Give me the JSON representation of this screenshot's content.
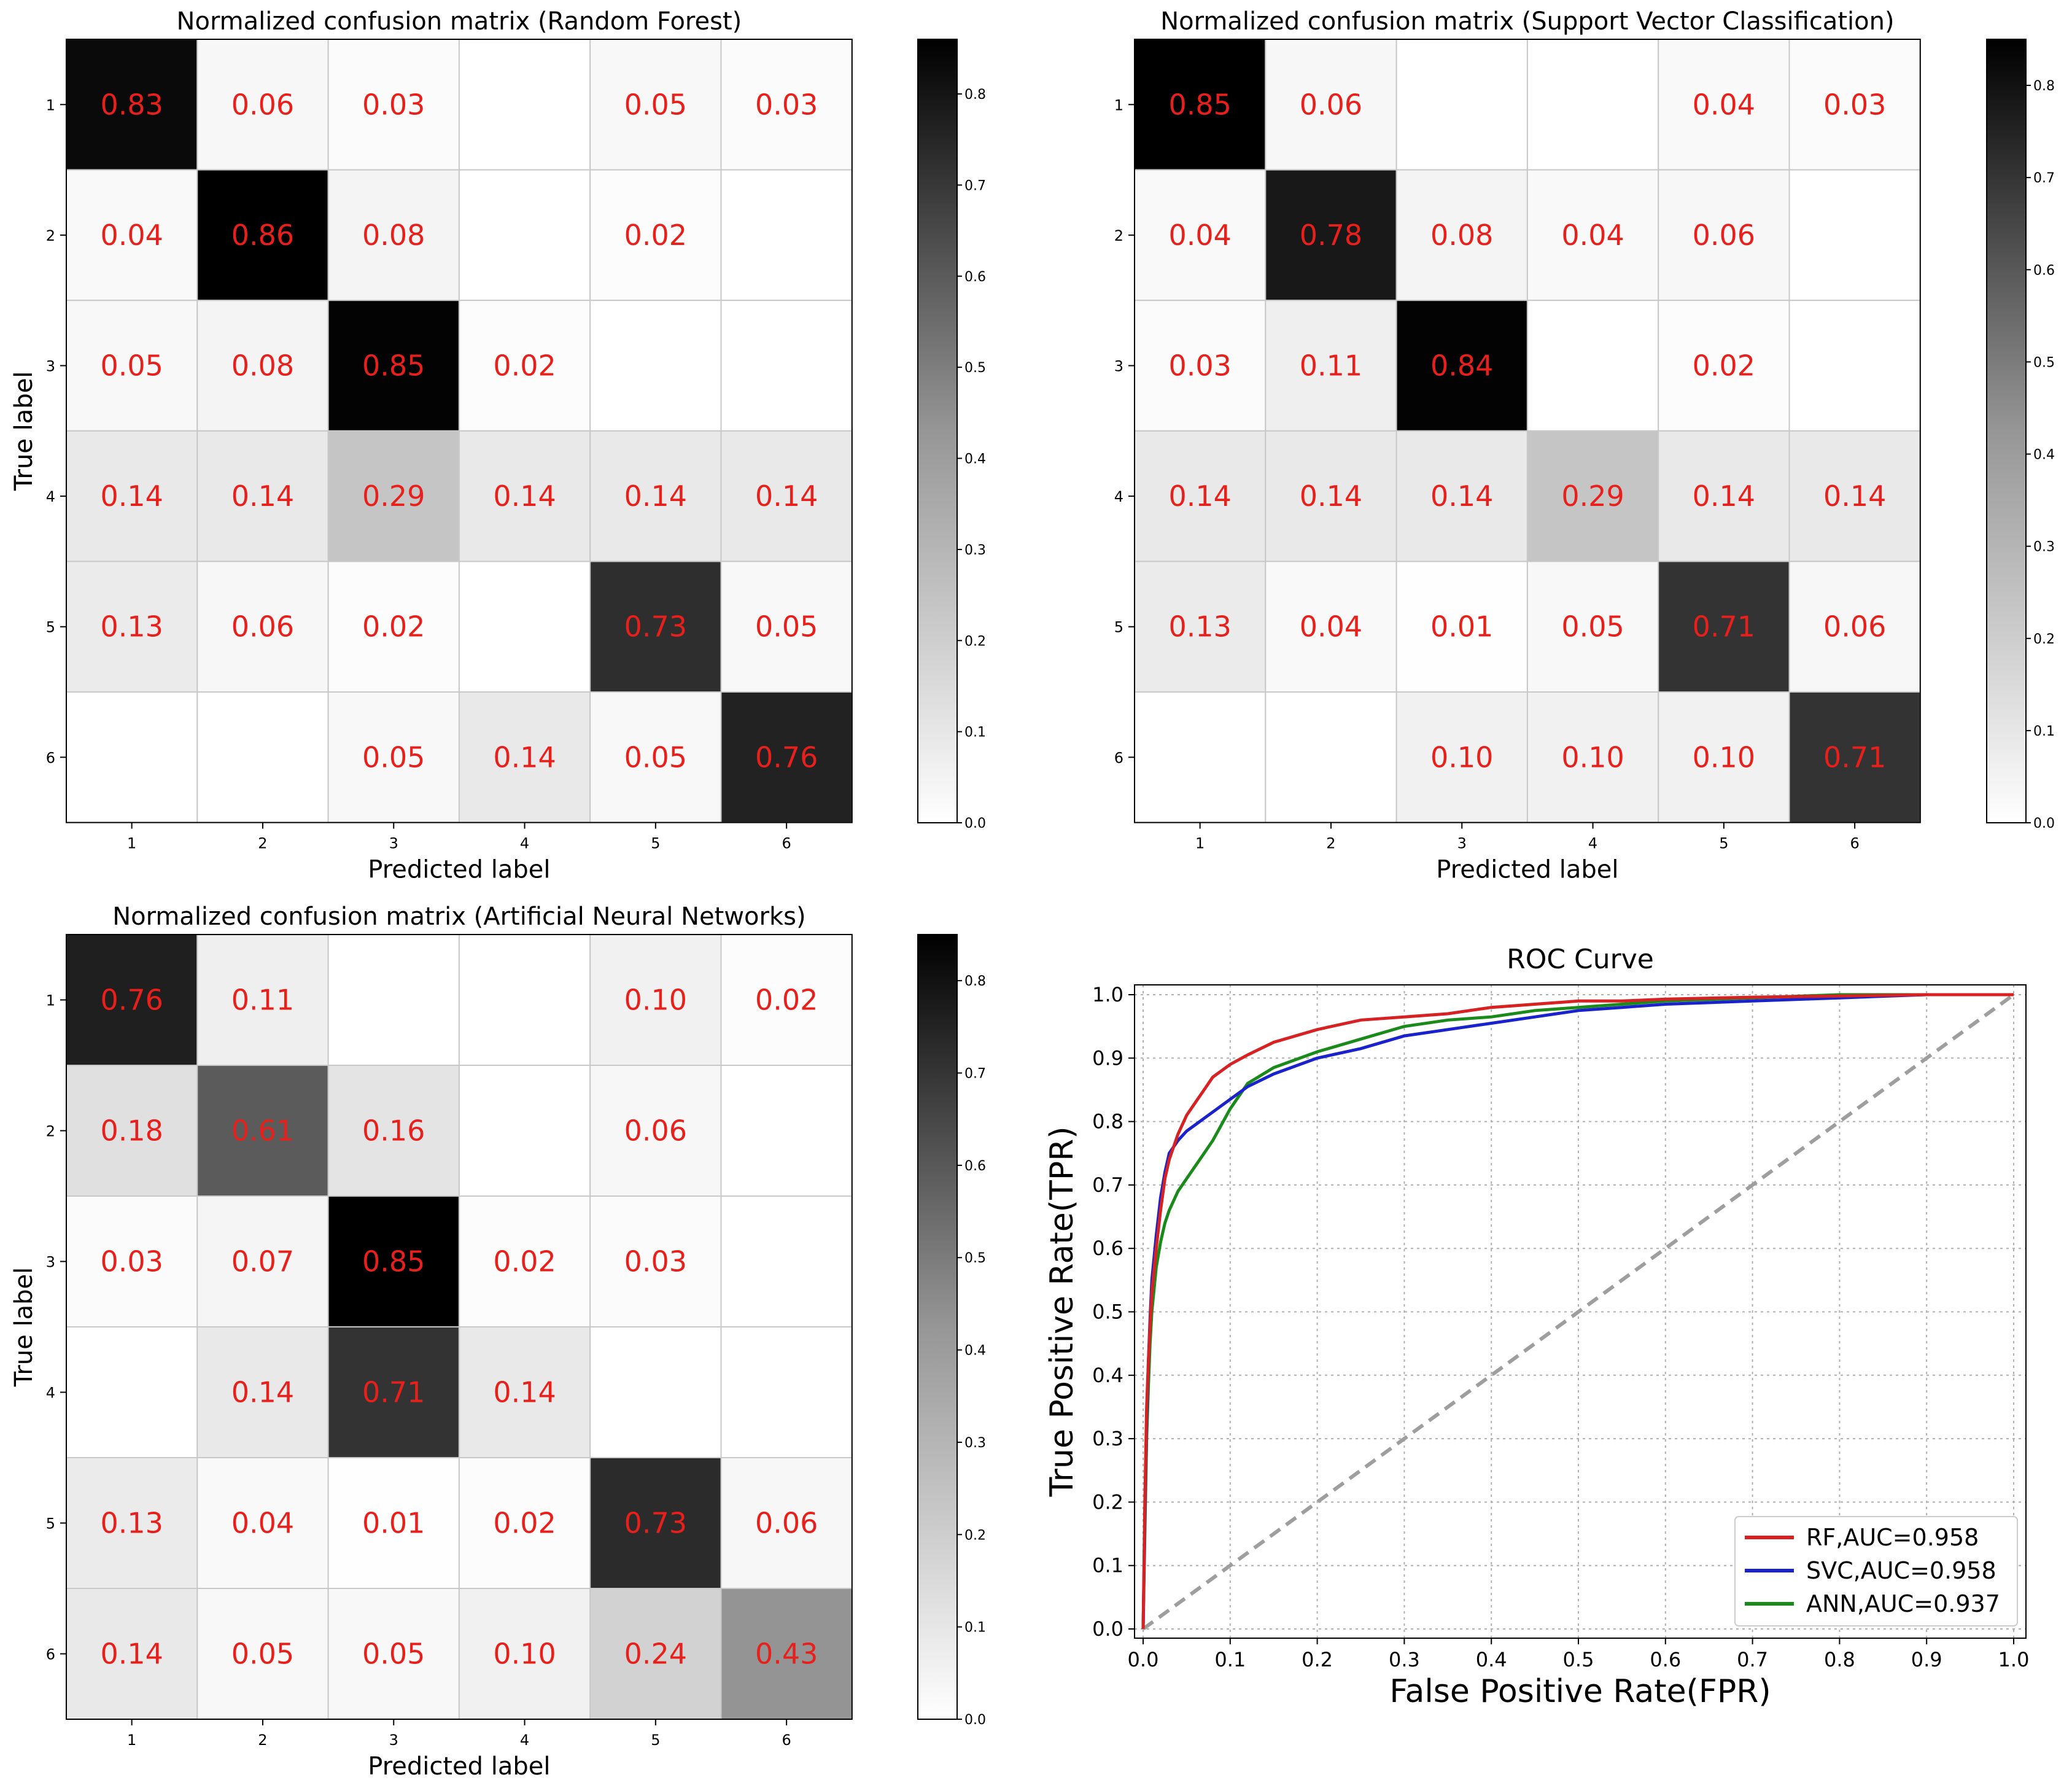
{
  "figure": {
    "colorbar_ticks": [
      "0.0",
      "0.1",
      "0.2",
      "0.3",
      "0.4",
      "0.5",
      "0.6",
      "0.7",
      "0.8"
    ]
  },
  "chart_data": [
    {
      "type": "heatmap",
      "title": "Normalized confusion matrix (Random Forest)",
      "xlabel": "Predicted label",
      "ylabel": "True label",
      "x_categories": [
        "1",
        "2",
        "3",
        "4",
        "5",
        "6"
      ],
      "y_categories": [
        "1",
        "2",
        "3",
        "4",
        "5",
        "6"
      ],
      "values": [
        [
          0.83,
          0.06,
          0.03,
          0.0,
          0.05,
          0.03
        ],
        [
          0.04,
          0.86,
          0.08,
          0.0,
          0.02,
          0.0
        ],
        [
          0.05,
          0.08,
          0.85,
          0.02,
          0.0,
          0.0
        ],
        [
          0.14,
          0.14,
          0.29,
          0.14,
          0.14,
          0.14
        ],
        [
          0.13,
          0.06,
          0.02,
          0.0,
          0.73,
          0.05
        ],
        [
          0.0,
          0.0,
          0.05,
          0.14,
          0.05,
          0.76
        ]
      ],
      "labels": [
        [
          "0.83",
          "0.06",
          "0.03",
          "",
          "0.05",
          "0.03"
        ],
        [
          "0.04",
          "0.86",
          "0.08",
          "",
          "0.02",
          ""
        ],
        [
          "0.05",
          "0.08",
          "0.85",
          "0.02",
          "",
          ""
        ],
        [
          "0.14",
          "0.14",
          "0.29",
          "0.14",
          "0.14",
          "0.14"
        ],
        [
          "0.13",
          "0.06",
          "0.02",
          "",
          "0.73",
          "0.05"
        ],
        [
          "",
          "",
          "0.05",
          "0.14",
          "0.05",
          "0.76"
        ]
      ],
      "colormap": "Greys",
      "vmin": 0.0,
      "vmax": 0.86,
      "colorbar_ticks": [
        0.0,
        0.1,
        0.2,
        0.3,
        0.4,
        0.5,
        0.6,
        0.7,
        0.8
      ],
      "label_color": "#e8201c",
      "grid": true
    },
    {
      "type": "heatmap",
      "title": "Normalized confusion matrix (Support Vector Classification)",
      "xlabel": "Predicted label",
      "ylabel": "True label",
      "x_categories": [
        "1",
        "2",
        "3",
        "4",
        "5",
        "6"
      ],
      "y_categories": [
        "1",
        "2",
        "3",
        "4",
        "5",
        "6"
      ],
      "values": [
        [
          0.85,
          0.06,
          0.0,
          0.0,
          0.04,
          0.03
        ],
        [
          0.04,
          0.78,
          0.08,
          0.04,
          0.06,
          0.0
        ],
        [
          0.03,
          0.11,
          0.84,
          0.0,
          0.02,
          0.0
        ],
        [
          0.14,
          0.14,
          0.14,
          0.29,
          0.14,
          0.14
        ],
        [
          0.13,
          0.04,
          0.01,
          0.05,
          0.71,
          0.06
        ],
        [
          0.0,
          0.0,
          0.1,
          0.1,
          0.1,
          0.71
        ]
      ],
      "labels": [
        [
          "0.85",
          "0.06",
          "",
          "",
          "0.04",
          "0.03"
        ],
        [
          "0.04",
          "0.78",
          "0.08",
          "0.04",
          "0.06",
          ""
        ],
        [
          "0.03",
          "0.11",
          "0.84",
          "",
          "0.02",
          ""
        ],
        [
          "0.14",
          "0.14",
          "0.14",
          "0.29",
          "0.14",
          "0.14"
        ],
        [
          "0.13",
          "0.04",
          "0.01",
          "0.05",
          "0.71",
          "0.06"
        ],
        [
          "",
          "",
          "0.10",
          "0.10",
          "0.10",
          "0.71"
        ]
      ],
      "colormap": "Greys",
      "vmin": 0.0,
      "vmax": 0.85,
      "colorbar_ticks": [
        0.0,
        0.1,
        0.2,
        0.3,
        0.4,
        0.5,
        0.6,
        0.7,
        0.8
      ],
      "label_color": "#e8201c",
      "grid": true
    },
    {
      "type": "heatmap",
      "title": "Normalized confusion matrix (Artificial Neural Networks)",
      "xlabel": "Predicted label",
      "ylabel": "True label",
      "x_categories": [
        "1",
        "2",
        "3",
        "4",
        "5",
        "6"
      ],
      "y_categories": [
        "1",
        "2",
        "3",
        "4",
        "5",
        "6"
      ],
      "values": [
        [
          0.76,
          0.11,
          0.0,
          0.0,
          0.1,
          0.02
        ],
        [
          0.18,
          0.61,
          0.16,
          0.0,
          0.06,
          0.0
        ],
        [
          0.03,
          0.07,
          0.85,
          0.02,
          0.03,
          0.0
        ],
        [
          0.0,
          0.14,
          0.71,
          0.14,
          0.0,
          0.0
        ],
        [
          0.13,
          0.04,
          0.01,
          0.02,
          0.73,
          0.06
        ],
        [
          0.14,
          0.05,
          0.05,
          0.1,
          0.24,
          0.43
        ]
      ],
      "labels": [
        [
          "0.76",
          "0.11",
          "",
          "",
          "0.10",
          "0.02"
        ],
        [
          "0.18",
          "0.61",
          "0.16",
          "",
          "0.06",
          ""
        ],
        [
          "0.03",
          "0.07",
          "0.85",
          "0.02",
          "0.03",
          ""
        ],
        [
          "",
          "0.14",
          "0.71",
          "0.14",
          "",
          ""
        ],
        [
          "0.13",
          "0.04",
          "0.01",
          "0.02",
          "0.73",
          "0.06"
        ],
        [
          "0.14",
          "0.05",
          "0.05",
          "0.10",
          "0.24",
          "0.43"
        ]
      ],
      "colormap": "Greys",
      "vmin": 0.0,
      "vmax": 0.85,
      "colorbar_ticks": [
        0.0,
        0.1,
        0.2,
        0.3,
        0.4,
        0.5,
        0.6,
        0.7,
        0.8
      ],
      "label_color": "#e8201c",
      "grid": true
    },
    {
      "type": "line",
      "title": "ROC Curve",
      "xlabel": "False Positive Rate(FPR)",
      "ylabel": "True Positive Rate(TPR)",
      "xlim": [
        0.0,
        1.0
      ],
      "ylim": [
        0.0,
        1.0
      ],
      "xticks": [
        "0.0",
        "0.1",
        "0.2",
        "0.3",
        "0.4",
        "0.5",
        "0.6",
        "0.7",
        "0.8",
        "0.9",
        "1.0"
      ],
      "yticks": [
        "0.0",
        "0.1",
        "0.2",
        "0.3",
        "0.4",
        "0.5",
        "0.6",
        "0.7",
        "0.8",
        "0.9",
        "1.0"
      ],
      "grid": true,
      "legend_position": "lower-right",
      "series": [
        {
          "name": "RF,AUC=0.958",
          "color": "#d62222",
          "x": [
            0.0,
            0.002,
            0.004,
            0.006,
            0.008,
            0.01,
            0.015,
            0.02,
            0.025,
            0.03,
            0.04,
            0.05,
            0.06,
            0.07,
            0.08,
            0.1,
            0.12,
            0.15,
            0.2,
            0.25,
            0.3,
            0.35,
            0.4,
            0.45,
            0.5,
            0.55,
            0.6,
            0.7,
            0.8,
            0.9,
            1.0
          ],
          "y": [
            0.0,
            0.2,
            0.35,
            0.42,
            0.48,
            0.53,
            0.6,
            0.66,
            0.71,
            0.74,
            0.78,
            0.81,
            0.83,
            0.85,
            0.87,
            0.89,
            0.905,
            0.925,
            0.945,
            0.96,
            0.965,
            0.97,
            0.98,
            0.985,
            0.99,
            0.99,
            0.993,
            0.996,
            0.998,
            1.0,
            1.0
          ]
        },
        {
          "name": "SVC,AUC=0.958",
          "color": "#1a22cc",
          "x": [
            0.0,
            0.002,
            0.004,
            0.006,
            0.008,
            0.01,
            0.015,
            0.02,
            0.025,
            0.03,
            0.04,
            0.05,
            0.06,
            0.07,
            0.08,
            0.1,
            0.12,
            0.15,
            0.2,
            0.25,
            0.3,
            0.35,
            0.4,
            0.45,
            0.5,
            0.55,
            0.6,
            0.7,
            0.8,
            0.9,
            1.0
          ],
          "y": [
            0.0,
            0.18,
            0.33,
            0.42,
            0.49,
            0.55,
            0.62,
            0.68,
            0.72,
            0.75,
            0.77,
            0.785,
            0.795,
            0.805,
            0.815,
            0.835,
            0.855,
            0.875,
            0.9,
            0.915,
            0.935,
            0.945,
            0.955,
            0.965,
            0.975,
            0.98,
            0.985,
            0.99,
            0.995,
            1.0,
            1.0
          ]
        },
        {
          "name": "ANN,AUC=0.937",
          "color": "#1a8a1a",
          "x": [
            0.0,
            0.002,
            0.004,
            0.006,
            0.008,
            0.01,
            0.015,
            0.02,
            0.025,
            0.03,
            0.04,
            0.05,
            0.06,
            0.07,
            0.08,
            0.1,
            0.12,
            0.15,
            0.2,
            0.25,
            0.3,
            0.35,
            0.4,
            0.45,
            0.5,
            0.55,
            0.6,
            0.7,
            0.8,
            0.9,
            1.0
          ],
          "y": [
            0.0,
            0.15,
            0.3,
            0.38,
            0.45,
            0.5,
            0.57,
            0.61,
            0.64,
            0.66,
            0.69,
            0.71,
            0.73,
            0.75,
            0.77,
            0.82,
            0.86,
            0.885,
            0.91,
            0.93,
            0.95,
            0.96,
            0.965,
            0.975,
            0.98,
            0.985,
            0.99,
            0.995,
            1.0,
            1.0,
            1.0
          ]
        },
        {
          "name": "",
          "color": "#9e9e9e",
          "style": "dashed",
          "x": [
            0.0,
            1.0
          ],
          "y": [
            0.0,
            1.0
          ]
        }
      ]
    }
  ]
}
